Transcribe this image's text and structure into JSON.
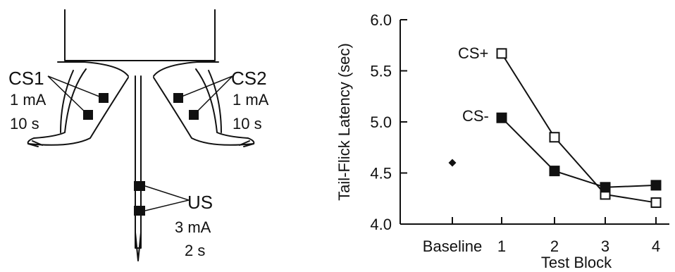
{
  "diagram": {
    "cs1": {
      "name": "CS1",
      "current": "1 mA",
      "duration": "10 s"
    },
    "cs2": {
      "name": "CS2",
      "current": "1 mA",
      "duration": "10 s"
    },
    "us": {
      "name": "US",
      "current": "3 mA",
      "duration": "2 s"
    }
  },
  "chart_data": {
    "type": "line",
    "title": "",
    "xlabel": "Test Block",
    "ylabel": "Tail-Flick Latency (sec)",
    "categories": [
      "Baseline",
      "1",
      "2",
      "3",
      "4"
    ],
    "ylim": [
      4.0,
      6.0
    ],
    "yticks": [
      "4.0",
      "4.5",
      "5.0",
      "5.5",
      "6.0"
    ],
    "grid": false,
    "baseline": {
      "x": "Baseline",
      "y": 4.6
    },
    "series": [
      {
        "name": "CS+",
        "marker": "open-square",
        "x": [
          "1",
          "2",
          "3",
          "4"
        ],
        "values": [
          5.67,
          4.85,
          4.29,
          4.21
        ]
      },
      {
        "name": "CS-",
        "marker": "filled-square",
        "x": [
          "1",
          "2",
          "3",
          "4"
        ],
        "values": [
          5.04,
          4.52,
          4.36,
          4.38
        ]
      }
    ]
  }
}
